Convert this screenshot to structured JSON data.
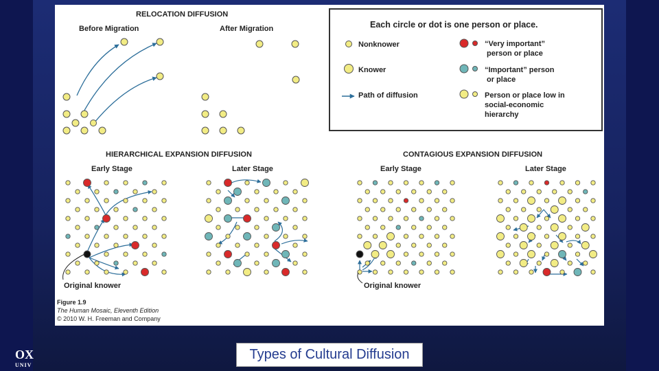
{
  "figure": {
    "relocation": {
      "title": "RELOCATION DIFFUSION",
      "before": "Before Migration",
      "after": "After Migration"
    },
    "legend": {
      "heading": "Each circle or dot is one person or place.",
      "nonknower": "Nonknower",
      "knower": "Knower",
      "path": "Path of diffusion",
      "very_important_1": "“Very important”",
      "very_important_2": "person or place",
      "important_1": "“Important” person",
      "important_2": "or place",
      "low_1": "Person or place low in",
      "low_2": "social-economic",
      "low_3": "hierarchy"
    },
    "hierarchical": {
      "title": "HIERARCHICAL EXPANSION DIFFUSION",
      "early": "Early Stage",
      "later": "Later Stage",
      "original": "Original knower"
    },
    "contagious": {
      "title": "CONTAGIOUS EXPANSION DIFFUSION",
      "early": "Early Stage",
      "later": "Later Stage",
      "original": "Original knower"
    },
    "credit": {
      "figure": "Figure 1.9",
      "book": "The Human Mosaic, Eleventh Edition",
      "copyright": "© 2010 W. H. Freeman and Company"
    }
  },
  "caption": "Types of Cultural Diffusion",
  "logo": {
    "text": "OX",
    "sub": "UNIV"
  },
  "colors": {
    "yellow": "#f2ec84",
    "red": "#d92a2a",
    "teal": "#6fb6b8",
    "arrow": "#2c6e9a",
    "black": "#111111",
    "caption_text": "#233b8f"
  }
}
